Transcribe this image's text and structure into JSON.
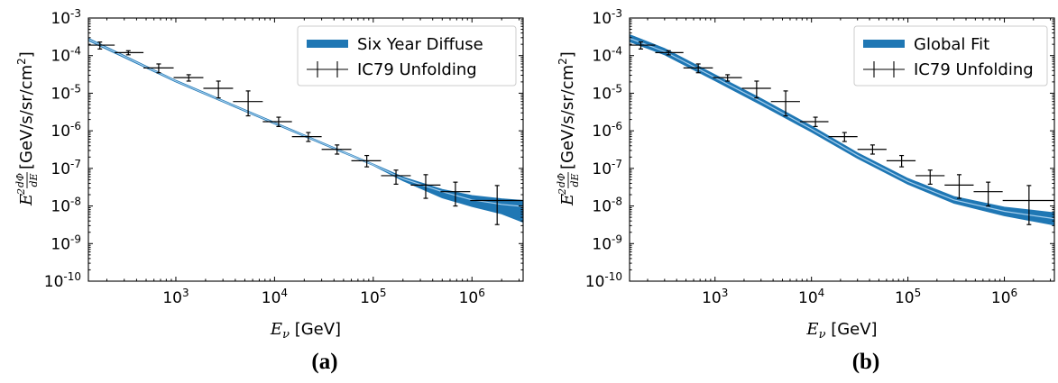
{
  "chart_data": [
    {
      "type": "line",
      "panel_label": "(a)",
      "xscale": "log",
      "yscale": "log",
      "xlim": [
        130,
        3300000
      ],
      "ylim": [
        1e-10,
        0.001
      ],
      "xticks": [
        {
          "value": 1000,
          "base": "10",
          "exp": "3"
        },
        {
          "value": 10000,
          "base": "10",
          "exp": "4"
        },
        {
          "value": 100000,
          "base": "10",
          "exp": "5"
        },
        {
          "value": 1000000,
          "base": "10",
          "exp": "6"
        }
      ],
      "yticks": [
        {
          "value": 0.001,
          "base": "10",
          "exp": "-3"
        },
        {
          "value": 0.0001,
          "base": "10",
          "exp": "-4"
        },
        {
          "value": 1e-05,
          "base": "10",
          "exp": "-5"
        },
        {
          "value": 1e-06,
          "base": "10",
          "exp": "-6"
        },
        {
          "value": 1e-07,
          "base": "10",
          "exp": "-7"
        },
        {
          "value": 1e-08,
          "base": "10",
          "exp": "-8"
        },
        {
          "value": 1e-09,
          "base": "10",
          "exp": "-9"
        },
        {
          "value": 1e-10,
          "base": "10",
          "exp": "-10"
        }
      ],
      "xlabel": {
        "var": "E",
        "sub": "ν",
        "unit": " [GeV]"
      },
      "ylabel": {
        "unit": " [GeV/s/sr/cm",
        "sup": "2",
        "close": "]"
      },
      "legend": {
        "position": "upper right",
        "band_label": "Six Year Diffuse",
        "points_label": "IC79 Unfolding"
      },
      "band": {
        "name": "Six Year Diffuse",
        "color": "#1f77b4",
        "x": [
          130,
          1000,
          10000,
          100000,
          200000,
          500000,
          1000000,
          2000000,
          3300000
        ],
        "center": [
          0.00027,
          2.1e-05,
          1.6e-06,
          1.25e-07,
          5.3e-08,
          2.4e-08,
          1.45e-08,
          1.1e-08,
          9.7e-09
        ],
        "lower": [
          0.00025,
          2e-05,
          1.52e-06,
          1.2e-07,
          4.7e-08,
          1.65e-08,
          9.7e-09,
          6.2e-09,
          3.7e-09
        ],
        "upper": [
          0.00029,
          2.2e-05,
          1.68e-06,
          1.3e-07,
          5.9e-08,
          2.75e-08,
          1.9e-08,
          1.55e-08,
          1.4e-08
        ]
      },
      "points": {
        "name": "IC79 Unfolding",
        "color": "#000000",
        "data": [
          {
            "x": 170,
            "y": 0.00019,
            "xlo": 130,
            "xhi": 240,
            "ylo": 0.00015,
            "yhi": 0.00023
          },
          {
            "x": 330,
            "y": 0.00012,
            "xlo": 240,
            "xhi": 470,
            "ylo": 0.000105,
            "yhi": 0.000135
          },
          {
            "x": 670,
            "y": 4.7e-05,
            "xlo": 470,
            "xhi": 950,
            "ylo": 3.5e-05,
            "yhi": 6e-05
          },
          {
            "x": 1350,
            "y": 2.6e-05,
            "xlo": 950,
            "xhi": 1900,
            "ylo": 2.1e-05,
            "yhi": 3.1e-05
          },
          {
            "x": 2700,
            "y": 1.35e-05,
            "xlo": 1900,
            "xhi": 3800,
            "ylo": 7.5e-06,
            "yhi": 2.1e-05
          },
          {
            "x": 5400,
            "y": 6e-06,
            "xlo": 3800,
            "xhi": 7600,
            "ylo": 2.5e-06,
            "yhi": 1.15e-05
          },
          {
            "x": 11000,
            "y": 1.75e-06,
            "xlo": 7600,
            "xhi": 15000,
            "ylo": 1.3e-06,
            "yhi": 2.3e-06
          },
          {
            "x": 22000,
            "y": 7e-07,
            "xlo": 15000,
            "xhi": 30000,
            "ylo": 5.2e-07,
            "yhi": 9e-07
          },
          {
            "x": 43000,
            "y": 3.2e-07,
            "xlo": 30000,
            "xhi": 60000,
            "ylo": 2.4e-07,
            "yhi": 4.2e-07
          },
          {
            "x": 86000,
            "y": 1.6e-07,
            "xlo": 60000,
            "xhi": 120000,
            "ylo": 1.1e-07,
            "yhi": 2.2e-07
          },
          {
            "x": 170000,
            "y": 6.4e-08,
            "xlo": 120000,
            "xhi": 240000,
            "ylo": 3.8e-08,
            "yhi": 9e-08
          },
          {
            "x": 340000,
            "y": 3.6e-08,
            "xlo": 240000,
            "xhi": 480000,
            "ylo": 1.6e-08,
            "yhi": 6.8e-08
          },
          {
            "x": 680000,
            "y": 2.4e-08,
            "xlo": 480000,
            "xhi": 960000,
            "ylo": 1e-08,
            "yhi": 4.3e-08
          },
          {
            "x": 1800000,
            "y": 1.4e-08,
            "xlo": 960000,
            "xhi": 3300000,
            "ylo": 3.2e-09,
            "yhi": 3.5e-08
          }
        ]
      }
    },
    {
      "type": "line",
      "panel_label": "(b)",
      "xscale": "log",
      "yscale": "log",
      "xlim": [
        130,
        3300000
      ],
      "ylim": [
        1e-10,
        0.001
      ],
      "xticks": [
        {
          "value": 1000,
          "base": "10",
          "exp": "3"
        },
        {
          "value": 10000,
          "base": "10",
          "exp": "4"
        },
        {
          "value": 100000,
          "base": "10",
          "exp": "5"
        },
        {
          "value": 1000000,
          "base": "10",
          "exp": "6"
        }
      ],
      "yticks": [
        {
          "value": 0.001,
          "base": "10",
          "exp": "-3"
        },
        {
          "value": 0.0001,
          "base": "10",
          "exp": "-4"
        },
        {
          "value": 1e-05,
          "base": "10",
          "exp": "-5"
        },
        {
          "value": 1e-06,
          "base": "10",
          "exp": "-6"
        },
        {
          "value": 1e-07,
          "base": "10",
          "exp": "-7"
        },
        {
          "value": 1e-08,
          "base": "10",
          "exp": "-8"
        },
        {
          "value": 1e-09,
          "base": "10",
          "exp": "-9"
        },
        {
          "value": 1e-10,
          "base": "10",
          "exp": "-10"
        }
      ],
      "xlabel": {
        "var": "E",
        "sub": "ν",
        "unit": " [GeV]"
      },
      "ylabel": {
        "unit": " [GeV/s/sr/cm",
        "sup": "2",
        "close": "]"
      },
      "legend": {
        "position": "upper right",
        "band_label": "Global Fit",
        "points_label": "IC79 Unfolding"
      },
      "band": {
        "name": "Global Fit",
        "color": "#1f77b4",
        "x": [
          130,
          300,
          1000,
          3000,
          10000,
          30000,
          100000,
          300000,
          1000000,
          3300000
        ],
        "center": [
          0.00029,
          0.000128,
          2.6e-05,
          6e-06,
          1.12e-06,
          2.2e-07,
          4.5e-08,
          1.45e-08,
          7.2e-09,
          4.6e-09
        ],
        "lower": [
          0.000235,
          0.000105,
          2.15e-05,
          4.9e-06,
          9.3e-07,
          1.85e-07,
          3.8e-08,
          1.18e-08,
          5.5e-09,
          3.1e-09
        ],
        "upper": [
          0.00036,
          0.000155,
          3.1e-05,
          7.2e-06,
          1.34e-06,
          2.6e-07,
          5.4e-08,
          1.78e-08,
          9.3e-09,
          6.6e-09
        ]
      },
      "points": {
        "name": "IC79 Unfolding",
        "color": "#000000",
        "data": [
          {
            "x": 170,
            "y": 0.00019,
            "xlo": 130,
            "xhi": 240,
            "ylo": 0.00015,
            "yhi": 0.00023
          },
          {
            "x": 330,
            "y": 0.00012,
            "xlo": 240,
            "xhi": 470,
            "ylo": 0.000105,
            "yhi": 0.000135
          },
          {
            "x": 670,
            "y": 4.7e-05,
            "xlo": 470,
            "xhi": 950,
            "ylo": 3.5e-05,
            "yhi": 6e-05
          },
          {
            "x": 1350,
            "y": 2.6e-05,
            "xlo": 950,
            "xhi": 1900,
            "ylo": 2.1e-05,
            "yhi": 3.1e-05
          },
          {
            "x": 2700,
            "y": 1.35e-05,
            "xlo": 1900,
            "xhi": 3800,
            "ylo": 7.5e-06,
            "yhi": 2.1e-05
          },
          {
            "x": 5400,
            "y": 6e-06,
            "xlo": 3800,
            "xhi": 7600,
            "ylo": 2.5e-06,
            "yhi": 1.15e-05
          },
          {
            "x": 11000,
            "y": 1.75e-06,
            "xlo": 7600,
            "xhi": 15000,
            "ylo": 1.3e-06,
            "yhi": 2.3e-06
          },
          {
            "x": 22000,
            "y": 7e-07,
            "xlo": 15000,
            "xhi": 30000,
            "ylo": 5.2e-07,
            "yhi": 9e-07
          },
          {
            "x": 43000,
            "y": 3.2e-07,
            "xlo": 30000,
            "xhi": 60000,
            "ylo": 2.4e-07,
            "yhi": 4.2e-07
          },
          {
            "x": 86000,
            "y": 1.6e-07,
            "xlo": 60000,
            "xhi": 120000,
            "ylo": 1.1e-07,
            "yhi": 2.2e-07
          },
          {
            "x": 170000,
            "y": 6.4e-08,
            "xlo": 120000,
            "xhi": 240000,
            "ylo": 3.8e-08,
            "yhi": 9e-08
          },
          {
            "x": 340000,
            "y": 3.6e-08,
            "xlo": 240000,
            "xhi": 480000,
            "ylo": 1.6e-08,
            "yhi": 6.8e-08
          },
          {
            "x": 680000,
            "y": 2.4e-08,
            "xlo": 480000,
            "xhi": 960000,
            "ylo": 1e-08,
            "yhi": 4.3e-08
          },
          {
            "x": 1800000,
            "y": 1.4e-08,
            "xlo": 960000,
            "xhi": 3300000,
            "ylo": 3.2e-09,
            "yhi": 3.5e-08
          }
        ]
      }
    }
  ]
}
